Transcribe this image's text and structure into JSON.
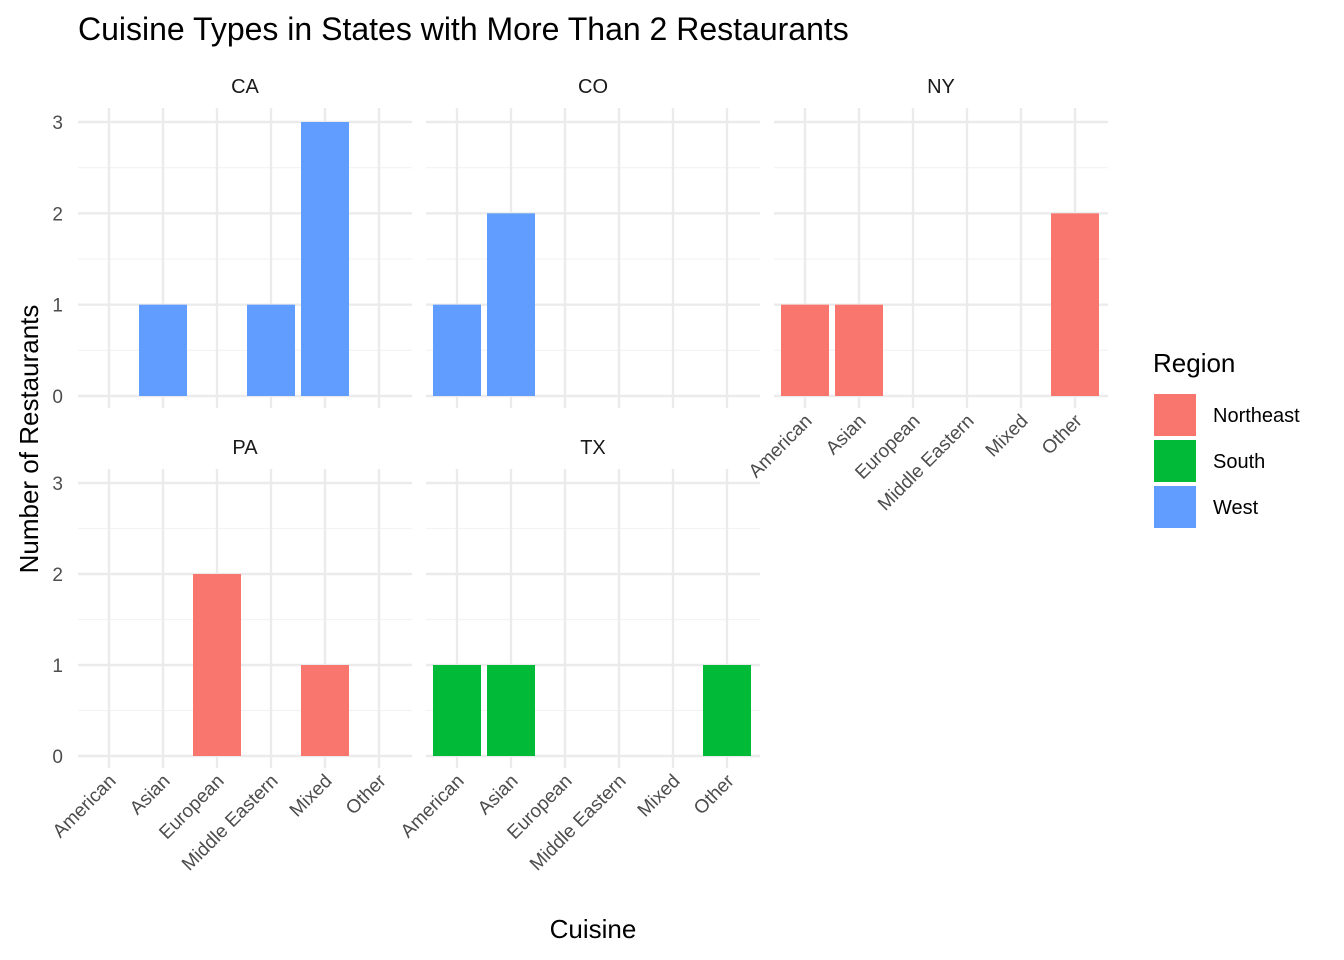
{
  "chart_data": {
    "type": "bar",
    "title": "Cuisine Types in States with More Than 2 Restaurants",
    "xlabel": "Cuisine",
    "ylabel": "Number of Restaurants",
    "categories": [
      "American",
      "Asian",
      "European",
      "Middle Eastern",
      "Mixed",
      "Other"
    ],
    "ylim": [
      0,
      3
    ],
    "yticks": [
      "0",
      "1",
      "2",
      "3"
    ],
    "legend": {
      "title": "Region",
      "position": "right",
      "items": [
        {
          "name": "Northeast",
          "color": "#F8766D"
        },
        {
          "name": "South",
          "color": "#00BA38"
        },
        {
          "name": "West",
          "color": "#619CFF"
        }
      ]
    },
    "panels": [
      {
        "state": "CA",
        "region": "West",
        "values": [
          0,
          1,
          0,
          1,
          3,
          0
        ]
      },
      {
        "state": "CO",
        "region": "West",
        "values": [
          1,
          2,
          0,
          0,
          0,
          0
        ]
      },
      {
        "state": "NY",
        "region": "Northeast",
        "values": [
          1,
          1,
          0,
          0,
          0,
          2
        ]
      },
      {
        "state": "PA",
        "region": "Northeast",
        "values": [
          0,
          0,
          2,
          0,
          1,
          0
        ]
      },
      {
        "state": "TX",
        "region": "South",
        "values": [
          1,
          1,
          0,
          0,
          0,
          1
        ]
      }
    ]
  }
}
